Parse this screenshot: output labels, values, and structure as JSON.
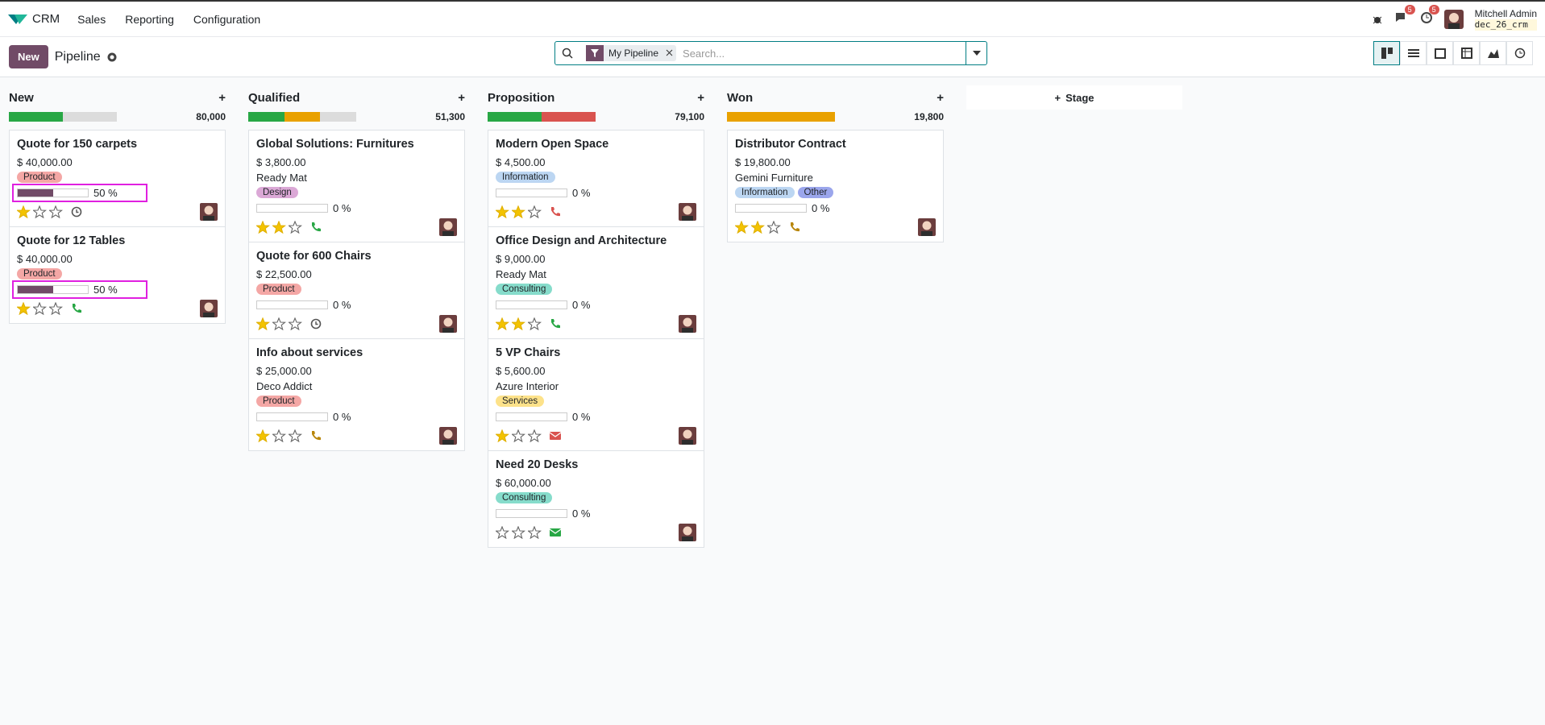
{
  "navbar": {
    "app": "CRM",
    "menus": [
      "Sales",
      "Reporting",
      "Configuration"
    ],
    "messages_badge": "5",
    "activities_badge": "5",
    "user": "Mitchell Admin",
    "db": "dec_26_crm"
  },
  "control_panel": {
    "new_button": "New",
    "breadcrumb": "Pipeline",
    "facet": "My Pipeline",
    "search_placeholder": "Search..."
  },
  "add_stage": "Stage",
  "columns": [
    {
      "title": "New",
      "total": "80,000",
      "activity_bar": [
        {
          "color": "#28a745",
          "count": 1
        },
        {
          "color": "#dcdcdc",
          "count": 1
        }
      ],
      "cards": [
        {
          "name": "Quote for 150 carpets",
          "amount": "$ 40,000.00",
          "tags": [
            {
              "name": "Product",
              "color": "#f4a7a5"
            }
          ],
          "progress": {
            "value": 50,
            "label": "50 %"
          },
          "priority": 1,
          "activity": {
            "icon": "clock",
            "color": "#555555"
          },
          "highlighted": true
        },
        {
          "name": "Quote for 12 Tables",
          "amount": "$ 40,000.00",
          "tags": [
            {
              "name": "Product",
              "color": "#f4a7a5"
            }
          ],
          "progress": {
            "value": 50,
            "label": "50 %"
          },
          "priority": 1,
          "activity": {
            "icon": "phone",
            "color": "#28a745"
          },
          "highlighted": true
        }
      ]
    },
    {
      "title": "Qualified",
      "total": "51,300",
      "activity_bar": [
        {
          "color": "#28a745",
          "count": 1
        },
        {
          "color": "#e9a100",
          "count": 1
        },
        {
          "color": "#dcdcdc",
          "count": 1
        }
      ],
      "cards": [
        {
          "name": "Global Solutions: Furnitures",
          "amount": "$ 3,800.00",
          "partner": "Ready Mat",
          "tags": [
            {
              "name": "Design",
              "color": "#dba8d6"
            }
          ],
          "progress": {
            "value": 0,
            "label": "0 %"
          },
          "priority": 2,
          "activity": {
            "icon": "phone",
            "color": "#28a745"
          }
        },
        {
          "name": "Quote for 600 Chairs",
          "amount": "$ 22,500.00",
          "tags": [
            {
              "name": "Product",
              "color": "#f4a7a5"
            }
          ],
          "progress": {
            "value": 0,
            "label": "0 %"
          },
          "priority": 1,
          "activity": {
            "icon": "clock",
            "color": "#555555"
          }
        },
        {
          "name": "Info about services",
          "amount": "$ 25,000.00",
          "partner": "Deco Addict",
          "tags": [
            {
              "name": "Product",
              "color": "#f4a7a5"
            }
          ],
          "progress": {
            "value": 0,
            "label": "0 %"
          },
          "priority": 1,
          "activity": {
            "icon": "phone",
            "color": "#b8860b"
          }
        }
      ]
    },
    {
      "title": "Proposition",
      "total": "79,100",
      "activity_bar": [
        {
          "color": "#28a745",
          "count": 2
        },
        {
          "color": "#d9534f",
          "count": 2
        }
      ],
      "cards": [
        {
          "name": "Modern Open Space",
          "amount": "$ 4,500.00",
          "tags": [
            {
              "name": "Information",
              "color": "#bcd6f2"
            }
          ],
          "progress": {
            "value": 0,
            "label": "0 %"
          },
          "priority": 2,
          "activity": {
            "icon": "phone",
            "color": "#d9534f"
          }
        },
        {
          "name": "Office Design and Architecture",
          "amount": "$ 9,000.00",
          "partner": "Ready Mat",
          "tags": [
            {
              "name": "Consulting",
              "color": "#86dccb"
            }
          ],
          "progress": {
            "value": 0,
            "label": "0 %"
          },
          "priority": 2,
          "activity": {
            "icon": "phone",
            "color": "#28a745"
          }
        },
        {
          "name": "5 VP Chairs",
          "amount": "$ 5,600.00",
          "partner": "Azure Interior",
          "tags": [
            {
              "name": "Services",
              "color": "#fde28a"
            }
          ],
          "progress": {
            "value": 0,
            "label": "0 %"
          },
          "priority": 1,
          "activity": {
            "icon": "email",
            "color": "#d9534f"
          }
        },
        {
          "name": "Need 20 Desks",
          "amount": "$ 60,000.00",
          "tags": [
            {
              "name": "Consulting",
              "color": "#86dccb"
            }
          ],
          "progress": {
            "value": 0,
            "label": "0 %"
          },
          "priority": 0,
          "activity": {
            "icon": "email",
            "color": "#28a745"
          }
        }
      ]
    },
    {
      "title": "Won",
      "total": "19,800",
      "activity_bar": [
        {
          "color": "#e9a100",
          "count": 1
        }
      ],
      "cards": [
        {
          "name": "Distributor Contract",
          "amount": "$ 19,800.00",
          "partner": "Gemini Furniture",
          "tags": [
            {
              "name": "Information",
              "color": "#bcd6f2"
            },
            {
              "name": "Other",
              "color": "#9ba6ec"
            }
          ],
          "progress": {
            "value": 0,
            "label": "0 %"
          },
          "priority": 2,
          "activity": {
            "icon": "phone",
            "color": "#b8860b"
          }
        }
      ]
    }
  ]
}
